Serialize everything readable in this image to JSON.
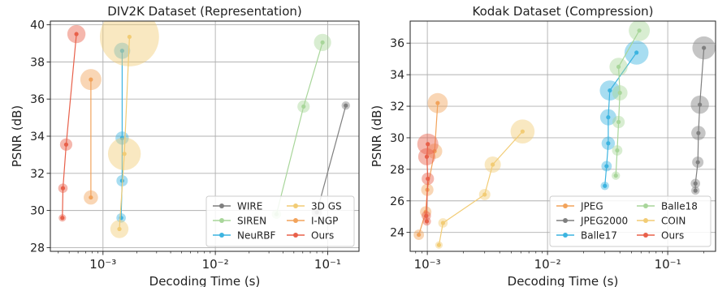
{
  "chart_data": [
    {
      "type": "scatter",
      "title": "DIV2K Dataset (Representation)",
      "xlabel": "Decoding Time (s)",
      "ylabel": "PSNR (dB)",
      "xscale": "log",
      "xlim": [
        0.00034,
        0.19
      ],
      "ylim": [
        27.8,
        40.2
      ],
      "grid": true,
      "legend_position": "bottom-right",
      "legend_columns": 2,
      "xticks": [
        {
          "value": 0.001,
          "label": "10⁻³"
        },
        {
          "value": 0.01,
          "label": "10⁻²"
        },
        {
          "value": 0.1,
          "label": "10⁻¹"
        }
      ],
      "yticks": [
        {
          "value": 28,
          "label": "28"
        },
        {
          "value": 30,
          "label": "30"
        },
        {
          "value": 32,
          "label": "32"
        },
        {
          "value": 34,
          "label": "34"
        },
        {
          "value": 36,
          "label": "36"
        },
        {
          "value": 38,
          "label": "38"
        },
        {
          "value": 40,
          "label": "40"
        }
      ],
      "series": [
        {
          "name": "WIRE",
          "color": "#7f7f7f",
          "points": [
            {
              "x": 0.08,
              "y": 29.9,
              "size": 0.9
            },
            {
              "x": 0.145,
              "y": 35.65,
              "size": 0.7
            }
          ]
        },
        {
          "name": "SIREN",
          "color": "#a8d69a",
          "points": [
            {
              "x": 0.035,
              "y": 29.8,
              "size": 0.8
            },
            {
              "x": 0.061,
              "y": 35.6,
              "size": 1.1
            },
            {
              "x": 0.09,
              "y": 39.05,
              "size": 1.6
            }
          ]
        },
        {
          "name": "NeuRBF",
          "color": "#3cb4e0",
          "points": [
            {
              "x": 0.00145,
              "y": 29.6,
              "size": 0.8
            },
            {
              "x": 0.00148,
              "y": 31.6,
              "size": 1.0
            },
            {
              "x": 0.00148,
              "y": 33.9,
              "size": 1.2
            },
            {
              "x": 0.00148,
              "y": 38.6,
              "size": 1.5
            }
          ]
        },
        {
          "name": "3D GS",
          "color": "#f2cc75",
          "points": [
            {
              "x": 0.0014,
              "y": 29.0,
              "size": 1.7
            },
            {
              "x": 0.00155,
              "y": 33.05,
              "size": 3.2
            },
            {
              "x": 0.00172,
              "y": 39.35,
              "size": 5.9
            }
          ]
        },
        {
          "name": "I-NGP",
          "color": "#f2a35b",
          "points": [
            {
              "x": 0.00078,
              "y": 30.7,
              "size": 1.3
            },
            {
              "x": 0.00078,
              "y": 37.05,
              "size": 2.0
            }
          ]
        },
        {
          "name": "Ours",
          "color": "#e8604a",
          "points": [
            {
              "x": 0.000435,
              "y": 29.6,
              "size": 0.6
            },
            {
              "x": 0.00044,
              "y": 31.2,
              "size": 0.8
            },
            {
              "x": 0.00047,
              "y": 33.55,
              "size": 1.1
            },
            {
              "x": 0.00058,
              "y": 39.5,
              "size": 1.7
            }
          ]
        }
      ]
    },
    {
      "type": "scatter",
      "title": "Kodak Dataset (Compression)",
      "xlabel": "Decoding Time (s)",
      "ylabel": "PSNR (dB)",
      "xscale": "log",
      "xlim": [
        0.00072,
        0.25
      ],
      "ylim": [
        22.8,
        37.4
      ],
      "grid": true,
      "legend_position": "bottom-right",
      "legend_columns": 2,
      "xticks": [
        {
          "value": 0.001,
          "label": "10⁻³"
        },
        {
          "value": 0.01,
          "label": "10⁻²"
        },
        {
          "value": 0.1,
          "label": "10⁻¹"
        }
      ],
      "yticks": [
        {
          "value": 24,
          "label": "24"
        },
        {
          "value": 26,
          "label": "26"
        },
        {
          "value": 28,
          "label": "28"
        },
        {
          "value": 30,
          "label": "30"
        },
        {
          "value": 32,
          "label": "32"
        },
        {
          "value": 34,
          "label": "34"
        },
        {
          "value": 36,
          "label": "36"
        }
      ],
      "series": [
        {
          "name": "JPEG",
          "color": "#f2a35b",
          "points": [
            {
              "x": 0.00085,
              "y": 23.85,
              "size": 0.9
            },
            {
              "x": 0.00097,
              "y": 25.3,
              "size": 1.0
            },
            {
              "x": 0.001,
              "y": 26.7,
              "size": 1.1
            },
            {
              "x": 0.00115,
              "y": 29.15,
              "size": 1.4
            },
            {
              "x": 0.00122,
              "y": 32.2,
              "size": 1.9
            }
          ]
        },
        {
          "name": "JPEG2000",
          "color": "#7f7f7f",
          "points": [
            {
              "x": 0.17,
              "y": 26.65,
              "size": 0.7
            },
            {
              "x": 0.17,
              "y": 27.1,
              "size": 0.8
            },
            {
              "x": 0.178,
              "y": 28.45,
              "size": 1.0
            },
            {
              "x": 0.18,
              "y": 30.3,
              "size": 1.3
            },
            {
              "x": 0.185,
              "y": 32.1,
              "size": 1.7
            },
            {
              "x": 0.2,
              "y": 35.7,
              "size": 2.2
            }
          ]
        },
        {
          "name": "Balle17",
          "color": "#3cb4e0",
          "points": [
            {
              "x": 0.03,
              "y": 26.95,
              "size": 0.7
            },
            {
              "x": 0.031,
              "y": 28.2,
              "size": 0.9
            },
            {
              "x": 0.032,
              "y": 29.65,
              "size": 1.2
            },
            {
              "x": 0.032,
              "y": 31.3,
              "size": 1.5
            },
            {
              "x": 0.033,
              "y": 33.0,
              "size": 1.9
            },
            {
              "x": 0.055,
              "y": 35.4,
              "size": 2.3
            }
          ]
        },
        {
          "name": "Balle18",
          "color": "#a8d69a",
          "points": [
            {
              "x": 0.037,
              "y": 27.6,
              "size": 0.7
            },
            {
              "x": 0.038,
              "y": 29.2,
              "size": 0.9
            },
            {
              "x": 0.039,
              "y": 31.0,
              "size": 1.1
            },
            {
              "x": 0.04,
              "y": 32.85,
              "size": 1.4
            },
            {
              "x": 0.039,
              "y": 34.5,
              "size": 1.7
            },
            {
              "x": 0.058,
              "y": 36.8,
              "size": 2.0
            }
          ]
        },
        {
          "name": "COIN",
          "color": "#f2cc75",
          "points": [
            {
              "x": 0.00125,
              "y": 23.2,
              "size": 0.6
            },
            {
              "x": 0.00135,
              "y": 24.6,
              "size": 0.8
            },
            {
              "x": 0.003,
              "y": 26.4,
              "size": 1.0
            },
            {
              "x": 0.0035,
              "y": 28.3,
              "size": 1.5
            },
            {
              "x": 0.0062,
              "y": 30.4,
              "size": 2.3
            }
          ]
        },
        {
          "name": "Ours",
          "color": "#e8604a",
          "points": [
            {
              "x": 0.00099,
              "y": 24.7,
              "size": 0.7
            },
            {
              "x": 0.00098,
              "y": 25.05,
              "size": 0.8
            },
            {
              "x": 0.00101,
              "y": 27.4,
              "size": 1.1
            },
            {
              "x": 0.00099,
              "y": 28.8,
              "size": 1.6
            },
            {
              "x": 0.00101,
              "y": 29.6,
              "size": 2.0
            }
          ]
        }
      ]
    }
  ]
}
